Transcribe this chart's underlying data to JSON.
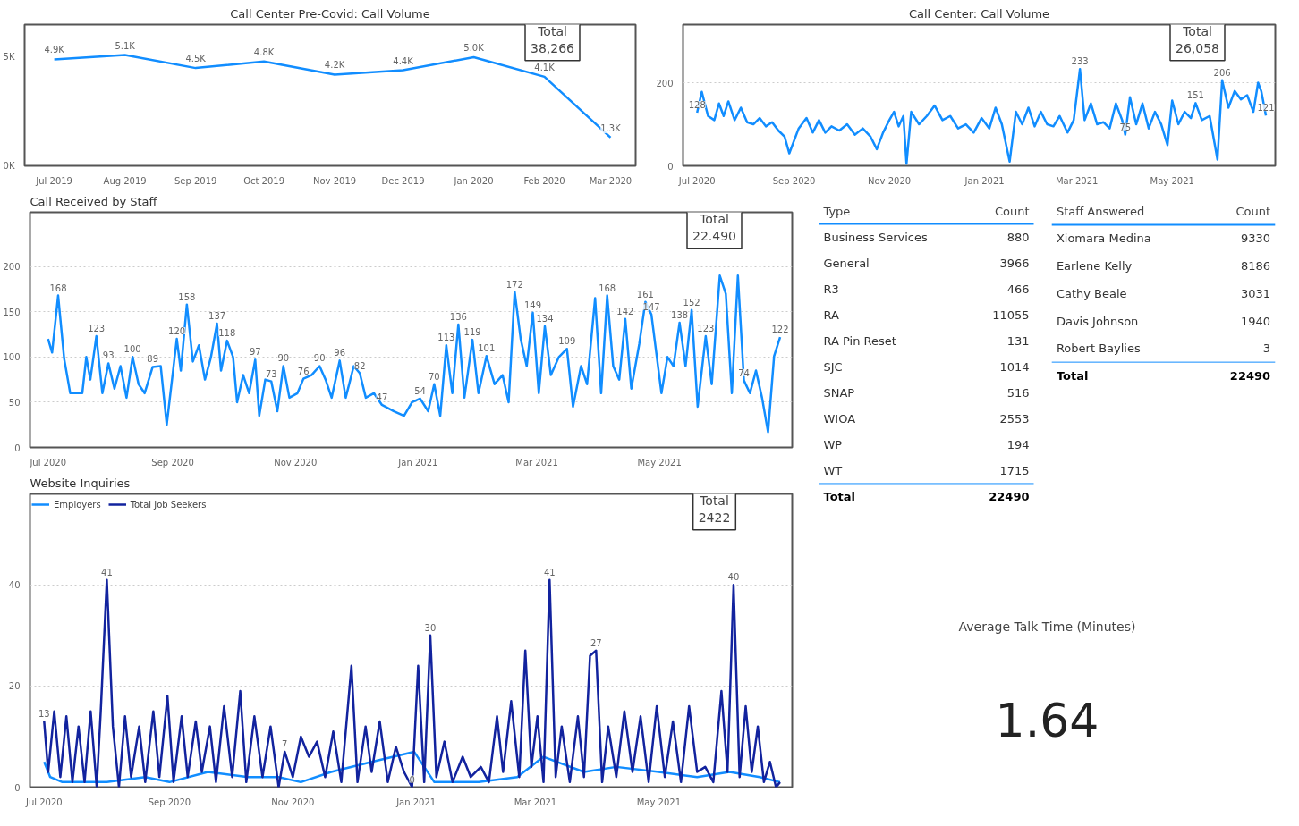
{
  "chart_data": [
    {
      "type": "line",
      "title": "Call Center Pre-Covid: Call Volume",
      "annotations": [
        "Total",
        "38,266"
      ],
      "grid": false,
      "x": [
        "2019-07",
        "2019-08",
        "2019-09",
        "2019-10",
        "2019-11",
        "2019-12",
        "2020-01",
        "2020-02",
        "2020-03"
      ],
      "xlim": [
        "2019-06-18",
        "2020-03-12"
      ],
      "xticks": [
        {
          "value": "2019-07",
          "label": "Jul 2019"
        },
        {
          "value": "2019-08",
          "label": "Aug 2019"
        },
        {
          "value": "2019-09",
          "label": "Sep 2019"
        },
        {
          "value": "2019-10",
          "label": "Oct 2019"
        },
        {
          "value": "2019-11",
          "label": "Nov 2019"
        },
        {
          "value": "2019-12",
          "label": "Dec 2019"
        },
        {
          "value": "2020-01",
          "label": "Jan 2020"
        },
        {
          "value": "2020-02",
          "label": "Feb 2020"
        },
        {
          "value": "2020-03",
          "label": "Mar 2020"
        }
      ],
      "ylim": [
        0,
        6500
      ],
      "yticks": [
        {
          "value": 0,
          "label": "0K"
        },
        {
          "value": 5000,
          "label": "5K"
        }
      ],
      "series": [
        {
          "color": "#118dff",
          "values": [
            4900,
            5100,
            4500,
            4800,
            4200,
            4400,
            5000,
            4100,
            1300
          ],
          "value_labels": [
            "4.9K",
            "5.1K",
            "4.5K",
            "4.8K",
            "4.2K",
            "4.4K",
            "5.0K",
            "4.1K",
            "1.3K"
          ]
        }
      ]
    },
    {
      "type": "line",
      "title": "Call Center: Call Volume",
      "annotations": [
        "Total",
        "26,058"
      ],
      "grid": "y",
      "xlim": [
        "2020-06-22",
        "2021-07-06"
      ],
      "xticks": [
        {
          "value": "2020-07-01",
          "label": "Jul 2020"
        },
        {
          "value": "2020-09-01",
          "label": "Sep 2020"
        },
        {
          "value": "2020-11-01",
          "label": "Nov 2020"
        },
        {
          "value": "2021-01-01",
          "label": "Jan 2021"
        },
        {
          "value": "2021-03-01",
          "label": "Mar 2021"
        },
        {
          "value": "2021-05-01",
          "label": "May 2021"
        }
      ],
      "ylim": [
        0,
        340
      ],
      "yticks": [
        0,
        200
      ],
      "series": [
        {
          "color": "#118dff",
          "x": [
            "2020-07-01",
            "2020-07-04",
            "2020-07-08",
            "2020-07-12",
            "2020-07-15",
            "2020-07-18",
            "2020-07-21",
            "2020-07-25",
            "2020-07-29",
            "2020-08-02",
            "2020-08-06",
            "2020-08-10",
            "2020-08-14",
            "2020-08-18",
            "2020-08-22",
            "2020-08-26",
            "2020-08-29",
            "2020-09-04",
            "2020-09-09",
            "2020-09-13",
            "2020-09-17",
            "2020-09-21",
            "2020-09-25",
            "2020-09-30",
            "2020-10-05",
            "2020-10-10",
            "2020-10-15",
            "2020-10-20",
            "2020-10-24",
            "2020-10-28",
            "2020-11-01",
            "2020-11-04",
            "2020-11-07",
            "2020-11-10",
            "2020-11-12",
            "2020-11-15",
            "2020-11-20",
            "2020-11-25",
            "2020-11-30",
            "2020-12-05",
            "2020-12-10",
            "2020-12-15",
            "2020-12-20",
            "2020-12-25",
            "2020-12-30",
            "2021-01-04",
            "2021-01-08",
            "2021-01-12",
            "2021-01-17",
            "2021-01-21",
            "2021-01-25",
            "2021-01-29",
            "2021-02-02",
            "2021-02-06",
            "2021-02-10",
            "2021-02-14",
            "2021-02-18",
            "2021-02-23",
            "2021-02-27",
            "2021-03-03",
            "2021-03-06",
            "2021-03-10",
            "2021-03-14",
            "2021-03-18",
            "2021-03-22",
            "2021-03-26",
            "2021-03-30",
            "2021-04-01",
            "2021-04-04",
            "2021-04-08",
            "2021-04-12",
            "2021-04-16",
            "2021-04-20",
            "2021-04-24",
            "2021-04-28",
            "2021-05-01",
            "2021-05-05",
            "2021-05-09",
            "2021-05-13",
            "2021-05-16",
            "2021-05-20",
            "2021-05-25",
            "2021-05-30",
            "2021-06-02",
            "2021-06-06",
            "2021-06-10",
            "2021-06-14",
            "2021-06-18",
            "2021-06-22",
            "2021-06-25",
            "2021-06-27",
            "2021-06-30"
          ],
          "values": [
            128,
            178,
            120,
            110,
            150,
            120,
            155,
            110,
            140,
            105,
            100,
            115,
            95,
            105,
            85,
            70,
            30,
            90,
            115,
            80,
            110,
            80,
            95,
            85,
            100,
            75,
            90,
            70,
            40,
            80,
            110,
            130,
            95,
            120,
            5,
            130,
            100,
            120,
            145,
            110,
            120,
            90,
            100,
            80,
            115,
            90,
            140,
            100,
            10,
            130,
            100,
            140,
            95,
            130,
            100,
            95,
            120,
            80,
            110,
            233,
            110,
            150,
            100,
            105,
            90,
            150,
            110,
            75,
            165,
            100,
            150,
            90,
            130,
            100,
            50,
            157,
            100,
            130,
            115,
            151,
            110,
            120,
            15,
            206,
            140,
            180,
            160,
            170,
            130,
            200,
            180,
            121
          ],
          "value_labels": [
            "128",
            null,
            null,
            null,
            null,
            null,
            null,
            null,
            null,
            null,
            null,
            null,
            null,
            null,
            null,
            null,
            null,
            null,
            null,
            null,
            null,
            null,
            null,
            null,
            null,
            null,
            null,
            null,
            null,
            null,
            null,
            null,
            null,
            null,
            null,
            null,
            null,
            null,
            null,
            null,
            null,
            null,
            null,
            null,
            null,
            null,
            null,
            null,
            null,
            null,
            null,
            null,
            null,
            null,
            null,
            null,
            null,
            null,
            null,
            "233",
            null,
            null,
            null,
            null,
            null,
            null,
            null,
            "75",
            null,
            null,
            null,
            null,
            null,
            null,
            null,
            null,
            null,
            null,
            null,
            "151",
            null,
            null,
            null,
            "206",
            null,
            null,
            null,
            null,
            null,
            null,
            null,
            "121"
          ]
        }
      ]
    },
    {
      "type": "line",
      "title": "Call Received by Staff",
      "annotations": [
        "Total",
        "22.490"
      ],
      "grid": "y",
      "xlim": [
        "2020-06-22",
        "2021-07-06"
      ],
      "xticks": [
        {
          "value": "2020-07-01",
          "label": "Jul 2020"
        },
        {
          "value": "2020-09-01",
          "label": "Sep 2020"
        },
        {
          "value": "2020-11-01",
          "label": "Nov 2020"
        },
        {
          "value": "2021-01-01",
          "label": "Jan 2021"
        },
        {
          "value": "2021-03-01",
          "label": "Mar 2021"
        },
        {
          "value": "2021-05-01",
          "label": "May 2021"
        }
      ],
      "ylim": [
        0,
        260
      ],
      "yticks": [
        0,
        50,
        100,
        150,
        200
      ],
      "series": [
        {
          "color": "#118dff",
          "x": [
            "2020-07-01",
            "2020-07-03",
            "2020-07-06",
            "2020-07-09",
            "2020-07-12",
            "2020-07-15",
            "2020-07-18",
            "2020-07-20",
            "2020-07-22",
            "2020-07-25",
            "2020-07-28",
            "2020-07-31",
            "2020-08-03",
            "2020-08-06",
            "2020-08-09",
            "2020-08-12",
            "2020-08-15",
            "2020-08-18",
            "2020-08-22",
            "2020-08-26",
            "2020-08-29",
            "2020-09-03",
            "2020-09-05",
            "2020-09-08",
            "2020-09-11",
            "2020-09-14",
            "2020-09-17",
            "2020-09-20",
            "2020-09-23",
            "2020-09-25",
            "2020-09-28",
            "2020-10-01",
            "2020-10-03",
            "2020-10-06",
            "2020-10-09",
            "2020-10-12",
            "2020-10-14",
            "2020-10-17",
            "2020-10-20",
            "2020-10-23",
            "2020-10-26",
            "2020-10-29",
            "2020-11-02",
            "2020-11-05",
            "2020-11-09",
            "2020-11-13",
            "2020-11-16",
            "2020-11-19",
            "2020-11-23",
            "2020-11-26",
            "2020-11-30",
            "2020-12-03",
            "2020-12-06",
            "2020-12-10",
            "2020-12-14",
            "2020-12-20",
            "2020-12-25",
            "2020-12-29",
            "2021-01-02",
            "2021-01-06",
            "2021-01-09",
            "2021-01-12",
            "2021-01-15",
            "2021-01-18",
            "2021-01-21",
            "2021-01-24",
            "2021-01-28",
            "2021-01-31",
            "2021-02-04",
            "2021-02-08",
            "2021-02-12",
            "2021-02-15",
            "2021-02-18",
            "2021-02-21",
            "2021-02-24",
            "2021-02-27",
            "2021-03-02",
            "2021-03-05",
            "2021-03-08",
            "2021-03-12",
            "2021-03-16",
            "2021-03-19",
            "2021-03-23",
            "2021-03-26",
            "2021-03-30",
            "2021-04-02",
            "2021-04-05",
            "2021-04-08",
            "2021-04-11",
            "2021-04-14",
            "2021-04-17",
            "2021-04-21",
            "2021-04-24",
            "2021-04-27",
            "2021-05-02",
            "2021-05-05",
            "2021-05-08",
            "2021-05-11",
            "2021-05-14",
            "2021-05-17",
            "2021-05-20",
            "2021-05-24",
            "2021-05-27",
            "2021-05-31",
            "2021-06-03",
            "2021-06-06",
            "2021-06-09",
            "2021-06-12",
            "2021-06-15",
            "2021-06-18",
            "2021-06-21",
            "2021-06-24",
            "2021-06-27",
            "2021-06-30"
          ],
          "values": [
            120,
            105,
            168,
            98,
            60,
            60,
            60,
            100,
            75,
            123,
            60,
            93,
            65,
            90,
            55,
            100,
            70,
            60,
            89,
            90,
            25,
            120,
            85,
            158,
            95,
            113,
            75,
            100,
            137,
            85,
            118,
            100,
            50,
            80,
            60,
            97,
            35,
            75,
            73,
            40,
            90,
            55,
            60,
            76,
            80,
            90,
            75,
            55,
            96,
            55,
            90,
            82,
            55,
            60,
            47,
            40,
            35,
            50,
            54,
            40,
            70,
            35,
            113,
            60,
            136,
            55,
            119,
            60,
            101,
            70,
            80,
            50,
            172,
            120,
            90,
            149,
            60,
            134,
            80,
            100,
            109,
            45,
            90,
            70,
            165,
            60,
            168,
            90,
            75,
            142,
            65,
            115,
            161,
            147,
            60,
            100,
            90,
            138,
            90,
            152,
            45,
            123,
            70,
            190,
            170,
            60,
            190,
            74,
            60,
            85,
            55,
            17,
            101,
            122
          ],
          "value_labels": [
            null,
            null,
            "168",
            null,
            null,
            null,
            null,
            null,
            null,
            "123",
            null,
            "93",
            null,
            null,
            null,
            "100",
            null,
            null,
            "89",
            null,
            null,
            "120",
            null,
            "158",
            null,
            null,
            null,
            null,
            "137",
            null,
            "118",
            null,
            null,
            null,
            null,
            "97",
            null,
            null,
            "73",
            null,
            "90",
            null,
            null,
            "76",
            null,
            "90",
            null,
            null,
            "96",
            null,
            null,
            "82",
            null,
            null,
            "47",
            null,
            null,
            null,
            "54",
            null,
            "70",
            null,
            "113",
            null,
            "136",
            null,
            "119",
            null,
            "101",
            null,
            null,
            null,
            "172",
            null,
            null,
            "149",
            null,
            "134",
            null,
            null,
            "109",
            null,
            null,
            null,
            null,
            null,
            "168",
            null,
            null,
            "142",
            null,
            null,
            "161",
            "147",
            null,
            null,
            null,
            "138",
            null,
            "152",
            null,
            "123",
            null,
            null,
            null,
            null,
            null,
            "74",
            null,
            null,
            null,
            null,
            null,
            "122"
          ]
        }
      ]
    },
    {
      "type": "line",
      "title": "Website Inquiries",
      "annotations": [
        "Total",
        "2422"
      ],
      "grid": "y",
      "legend": "top left",
      "xlim": [
        "2020-06-24",
        "2021-07-06"
      ],
      "xticks": [
        {
          "value": "2020-07-01",
          "label": "Jul 2020"
        },
        {
          "value": "2020-09-01",
          "label": "Sep 2020"
        },
        {
          "value": "2020-11-01",
          "label": "Nov 2020"
        },
        {
          "value": "2021-01-01",
          "label": "Jan 2021"
        },
        {
          "value": "2021-03-01",
          "label": "Mar 2021"
        },
        {
          "value": "2021-05-01",
          "label": "May 2021"
        }
      ],
      "ylim": [
        0,
        58
      ],
      "yticks": [
        0,
        20,
        40
      ],
      "series": [
        {
          "name": "Employers",
          "color": "#118dff",
          "x": [
            "2020-07-01",
            "2020-07-04",
            "2020-07-10",
            "2020-08-01",
            "2020-08-20",
            "2020-09-01",
            "2020-09-20",
            "2020-10-10",
            "2020-10-25",
            "2020-11-05",
            "2020-11-20",
            "2020-12-10",
            "2020-12-31",
            "2021-01-10",
            "2021-02-01",
            "2021-02-20",
            "2021-03-05",
            "2021-03-25",
            "2021-04-10",
            "2021-05-01",
            "2021-05-20",
            "2021-06-05",
            "2021-06-20",
            "2021-06-30"
          ],
          "values": [
            5,
            2,
            1,
            1,
            2,
            1,
            3,
            2,
            2,
            1,
            3,
            5,
            7,
            1,
            1,
            2,
            6,
            3,
            4,
            3,
            2,
            3,
            2,
            1
          ]
        },
        {
          "name": "Total Job Seekers",
          "color": "#12239e",
          "x": [
            "2020-07-01",
            "2020-07-03",
            "2020-07-06",
            "2020-07-09",
            "2020-07-12",
            "2020-07-15",
            "2020-07-18",
            "2020-07-21",
            "2020-07-24",
            "2020-07-27",
            "2020-07-29",
            "2020-08-01",
            "2020-08-04",
            "2020-08-07",
            "2020-08-10",
            "2020-08-13",
            "2020-08-17",
            "2020-08-20",
            "2020-08-24",
            "2020-08-27",
            "2020-08-31",
            "2020-09-03",
            "2020-09-07",
            "2020-09-10",
            "2020-09-14",
            "2020-09-17",
            "2020-09-21",
            "2020-09-24",
            "2020-09-28",
            "2020-10-02",
            "2020-10-06",
            "2020-10-09",
            "2020-10-13",
            "2020-10-17",
            "2020-10-21",
            "2020-10-25",
            "2020-10-28",
            "2020-11-01",
            "2020-11-05",
            "2020-11-09",
            "2020-11-13",
            "2020-11-17",
            "2020-11-21",
            "2020-11-25",
            "2020-11-30",
            "2020-12-03",
            "2020-12-07",
            "2020-12-10",
            "2020-12-14",
            "2020-12-18",
            "2020-12-22",
            "2020-12-26",
            "2020-12-30",
            "2021-01-02",
            "2021-01-05",
            "2021-01-08",
            "2021-01-11",
            "2021-01-15",
            "2021-01-19",
            "2021-01-24",
            "2021-01-28",
            "2021-02-02",
            "2021-02-06",
            "2021-02-10",
            "2021-02-13",
            "2021-02-17",
            "2021-02-21",
            "2021-02-24",
            "2021-02-27",
            "2021-03-02",
            "2021-03-05",
            "2021-03-08",
            "2021-03-11",
            "2021-03-14",
            "2021-03-18",
            "2021-03-22",
            "2021-03-25",
            "2021-03-28",
            "2021-03-31",
            "2021-04-03",
            "2021-04-06",
            "2021-04-10",
            "2021-04-14",
            "2021-04-18",
            "2021-04-22",
            "2021-04-26",
            "2021-04-30",
            "2021-05-04",
            "2021-05-08",
            "2021-05-12",
            "2021-05-16",
            "2021-05-20",
            "2021-05-24",
            "2021-05-28",
            "2021-06-01",
            "2021-06-04",
            "2021-06-07",
            "2021-06-10",
            "2021-06-13",
            "2021-06-16",
            "2021-06-19",
            "2021-06-22",
            "2021-06-25",
            "2021-06-28",
            "2021-06-30"
          ],
          "values": [
            13,
            3,
            15,
            2,
            14,
            1,
            12,
            1,
            15,
            0,
            15,
            41,
            12,
            0,
            14,
            2,
            12,
            1,
            15,
            2,
            18,
            1,
            14,
            2,
            13,
            3,
            12,
            1,
            16,
            2,
            19,
            1,
            14,
            2,
            12,
            0,
            7,
            2,
            10,
            6,
            9,
            2,
            11,
            1,
            24,
            1,
            12,
            3,
            13,
            1,
            8,
            3,
            0,
            24,
            1,
            30,
            2,
            9,
            1,
            6,
            2,
            4,
            1,
            14,
            3,
            17,
            2,
            27,
            4,
            14,
            1,
            41,
            2,
            12,
            1,
            14,
            2,
            26,
            27,
            1,
            12,
            2,
            15,
            3,
            14,
            1,
            16,
            2,
            13,
            1,
            16,
            3,
            4,
            1,
            19,
            3,
            40,
            2,
            16,
            3,
            12,
            1,
            5,
            0,
            1
          ],
          "value_labels": [
            "13",
            null,
            null,
            null,
            null,
            null,
            null,
            null,
            null,
            null,
            null,
            "41",
            null,
            null,
            null,
            null,
            null,
            null,
            null,
            null,
            null,
            null,
            null,
            null,
            null,
            null,
            null,
            null,
            null,
            null,
            null,
            null,
            null,
            null,
            null,
            null,
            "7",
            null,
            null,
            null,
            null,
            null,
            null,
            null,
            null,
            null,
            null,
            null,
            null,
            null,
            null,
            null,
            "0",
            null,
            null,
            "30",
            null,
            null,
            null,
            null,
            null,
            null,
            null,
            null,
            null,
            null,
            null,
            null,
            null,
            null,
            null,
            "41",
            null,
            null,
            null,
            null,
            null,
            null,
            "27",
            null,
            null,
            null,
            null,
            null,
            null,
            null,
            null,
            null,
            null,
            null,
            null,
            null,
            null,
            null,
            null,
            null,
            "40",
            null,
            null,
            null,
            null,
            null,
            null,
            null,
            null
          ]
        }
      ]
    },
    {
      "type": "other",
      "categories": [
        "Business Services",
        "General",
        "R3",
        "RA",
        "RA Pin Reset",
        "SJC",
        "SNAP",
        "WIOA",
        "WP",
        "WT"
      ],
      "values": [
        880,
        3966,
        466,
        11055,
        131,
        1014,
        516,
        2553,
        194,
        1715
      ],
      "data_labels": true,
      "annotations": [
        "Type",
        "Count",
        "Total",
        "22490"
      ]
    },
    {
      "type": "other",
      "categories": [
        "Xiomara Medina",
        "Earlene Kelly",
        "Cathy Beale",
        "Davis Johnson",
        "Robert Baylies"
      ],
      "values": [
        9330,
        8186,
        3031,
        1940,
        3
      ],
      "data_labels": true,
      "annotations": [
        "Staff Answered",
        "Count",
        "Total",
        "22490"
      ]
    },
    {
      "type": "other",
      "title": "Average Talk Time (Minutes)",
      "annotations": [
        "1.64"
      ]
    }
  ]
}
